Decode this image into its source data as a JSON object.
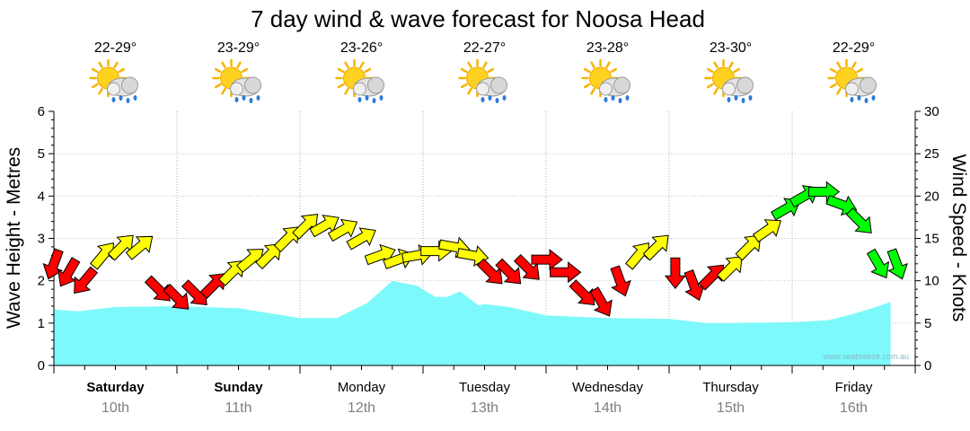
{
  "chart_data": {
    "type": "area",
    "title": "7 day wind & wave forecast for Noosa Head",
    "ylabel_left": "Wave Height - Metres",
    "ylabel_right": "Wind Speed - Knots",
    "y_left_ticks": [
      "0",
      "1",
      "2",
      "3",
      "4",
      "5",
      "6"
    ],
    "y_right_ticks": [
      "0",
      "5",
      "10",
      "15",
      "20",
      "25",
      "30"
    ],
    "ylim_left": [
      0,
      6
    ],
    "ylim_right": [
      0,
      30
    ],
    "watermark": "www.seabreeze.com.au",
    "grid": true,
    "days": [
      {
        "name": "Saturday",
        "date": "10th",
        "temp": "22-29°",
        "weather_icon": "sun-cloud-rain-icon",
        "bold": true
      },
      {
        "name": "Sunday",
        "date": "11th",
        "temp": "23-29°",
        "weather_icon": "sun-cloud-rain-icon",
        "bold": true
      },
      {
        "name": "Monday",
        "date": "12th",
        "temp": "23-26°",
        "weather_icon": "sun-cloud-rain-icon",
        "bold": false
      },
      {
        "name": "Tuesday",
        "date": "13th",
        "temp": "22-27°",
        "weather_icon": "sun-cloud-rain-icon",
        "bold": false
      },
      {
        "name": "Wednesday",
        "date": "14th",
        "temp": "23-28°",
        "weather_icon": "sun-cloud-rain-icon",
        "bold": false
      },
      {
        "name": "Thursday",
        "date": "15th",
        "temp": "23-30°",
        "weather_icon": "sun-cloud-rain-icon",
        "bold": false
      },
      {
        "name": "Friday",
        "date": "16th",
        "temp": "22-29°",
        "weather_icon": "sun-cloud-rain-icon",
        "bold": false
      }
    ],
    "wave_series": {
      "name": "Wave Height",
      "color": "#7df9fb",
      "x_day": [
        0,
        0.2,
        0.5,
        1.0,
        1.5,
        2.0,
        2.3,
        2.55,
        2.75,
        2.95,
        3.1,
        3.2,
        3.3,
        3.45,
        3.5,
        3.7,
        4.0,
        4.5,
        5.0,
        5.3,
        5.5,
        6.0,
        6.3,
        6.5,
        6.65,
        6.8
      ],
      "values": [
        1.32,
        1.28,
        1.38,
        1.4,
        1.35,
        1.12,
        1.12,
        1.48,
        2.0,
        1.88,
        1.62,
        1.62,
        1.75,
        1.42,
        1.45,
        1.38,
        1.18,
        1.12,
        1.1,
        1.0,
        1.0,
        1.02,
        1.07,
        1.22,
        1.35,
        1.5
      ]
    },
    "wind_series": {
      "name": "Wind",
      "colors": {
        "light": "#ff0000",
        "moderate": "#ffff00",
        "strong": "#00ff00"
      },
      "x_day": [
        0.0,
        0.12,
        0.25,
        0.4,
        0.55,
        0.7,
        0.85,
        1.0,
        1.15,
        1.3,
        1.45,
        1.6,
        1.75,
        1.9,
        2.05,
        2.2,
        2.35,
        2.5,
        2.65,
        2.8,
        2.95,
        3.1,
        3.25,
        3.4,
        3.55,
        3.7,
        3.85,
        4.0,
        4.15,
        4.3,
        4.45,
        4.6,
        4.75,
        4.9,
        5.05,
        5.2,
        5.35,
        5.5,
        5.65,
        5.8,
        5.95,
        6.1,
        6.25,
        6.4,
        6.55,
        6.7,
        6.85
      ],
      "speeds": [
        12,
        11,
        10,
        13,
        14,
        14,
        9,
        8,
        8.5,
        9.5,
        11,
        12.5,
        13,
        15,
        16.5,
        16.5,
        16,
        15,
        13,
        12.5,
        13,
        13.5,
        14,
        13,
        11,
        11,
        11.5,
        12.5,
        11,
        8.5,
        7.5,
        10,
        13,
        14,
        11,
        9.5,
        10.5,
        11.5,
        14,
        16,
        18.5,
        20,
        20.5,
        19,
        17,
        12,
        12
      ],
      "directions_deg": [
        200,
        210,
        220,
        40,
        45,
        50,
        135,
        135,
        135,
        45,
        45,
        50,
        45,
        45,
        45,
        60,
        60,
        60,
        70,
        70,
        80,
        90,
        100,
        100,
        135,
        135,
        135,
        90,
        90,
        135,
        150,
        160,
        40,
        45,
        180,
        160,
        45,
        45,
        45,
        55,
        60,
        60,
        90,
        110,
        135,
        150,
        160
      ],
      "categories": [
        "light",
        "light",
        "light",
        "moderate",
        "moderate",
        "moderate",
        "light",
        "light",
        "light",
        "light",
        "moderate",
        "moderate",
        "moderate",
        "moderate",
        "moderate",
        "moderate",
        "moderate",
        "moderate",
        "moderate",
        "moderate",
        "moderate",
        "moderate",
        "moderate",
        "moderate",
        "light",
        "light",
        "light",
        "light",
        "light",
        "light",
        "light",
        "light",
        "moderate",
        "moderate",
        "light",
        "light",
        "light",
        "moderate",
        "moderate",
        "moderate",
        "strong",
        "strong",
        "strong",
        "strong",
        "strong",
        "strong",
        "strong"
      ]
    }
  }
}
